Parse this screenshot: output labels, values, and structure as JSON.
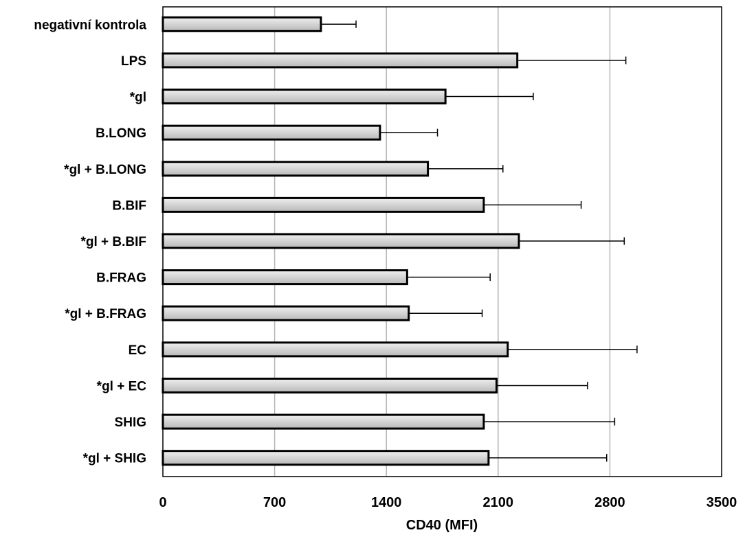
{
  "chart_data": {
    "type": "bar",
    "orientation": "horizontal",
    "categories": [
      "negativní kontrola",
      "LPS",
      "*gl",
      "B.LONG",
      "*gl + B.LONG",
      "B.BIF",
      "*gl + B.BIF",
      "B.FRAG",
      "*gl + B.FRAG",
      "EC",
      "*gl + EC",
      "SHIG",
      "*gl + SHIG"
    ],
    "values": [
      990,
      2220,
      1770,
      1360,
      1660,
      2010,
      2230,
      1530,
      1540,
      2160,
      2090,
      2010,
      2040
    ],
    "errors": [
      220,
      680,
      550,
      360,
      470,
      610,
      660,
      520,
      460,
      810,
      570,
      820,
      740
    ],
    "xlabel": "CD40  (MFI)",
    "ylabel": "",
    "title": "",
    "xlim": [
      0,
      3500
    ],
    "xticks": [
      "0",
      "700",
      "1400",
      "2100",
      "2800",
      "3500"
    ],
    "xtick_values": [
      0,
      700,
      1400,
      2100,
      2800,
      3500
    ],
    "grid": "vertical",
    "legend": "none",
    "colors": {
      "bar_fill_light": "#efefef",
      "bar_fill_dark": "#b8b8b8",
      "bar_stroke": "#000000",
      "grid": "#b5b5b5",
      "axis": "#000000"
    }
  }
}
